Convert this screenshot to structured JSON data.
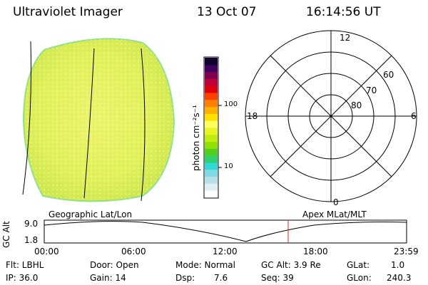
{
  "header": {
    "title": "Ultraviolet Imager",
    "date": "13 Oct 07",
    "time": "16:14:56 UT"
  },
  "colorbar": {
    "label": "photon cm⁻²s⁻¹",
    "ticks": [
      "100",
      "10"
    ],
    "colors": [
      "#ffffff",
      "#dfeef0",
      "#b8e0e6",
      "#80d8e8",
      "#30d8d8",
      "#30d070",
      "#50d020",
      "#90e000",
      "#c0ec10",
      "#e8f420",
      "#ffff60",
      "#ffe000",
      "#ffb000",
      "#ff8000",
      "#ff4000",
      "#e00010",
      "#c0003a",
      "#800050",
      "#400060",
      "#100030"
    ]
  },
  "geo_map": {
    "label": "Geographic Lat/Lon",
    "fill": "#e6f266",
    "rim": "#8ee08a"
  },
  "polar_plot": {
    "label": "Apex MLat/MLT",
    "mlt_labels": [
      "12",
      "18",
      "6",
      "0"
    ],
    "lat_labels": [
      "60",
      "70",
      "80"
    ]
  },
  "timeline": {
    "ylabel": "GC Alt",
    "ymax_label": "9.0",
    "ymin_label": "1.8",
    "x_labels": [
      "00:00",
      "06:00",
      "12:00",
      "18:00",
      "23:59"
    ],
    "marker_color": "#e02020"
  },
  "info": {
    "flt": "Flt: LBHL",
    "ip": "IP: 36.0",
    "door": "Door: Open",
    "gain": "Gain: 14",
    "mode": "Mode: Normal",
    "dsp_label": "Dsp:",
    "dsp_value": "7.6",
    "gcalt": "GC Alt: 3.9 Re",
    "seq": "Seq: 39",
    "glat_label": "GLat:",
    "glat_value": "1.0",
    "glon_label": "GLon:",
    "glon_value": "240.3"
  }
}
